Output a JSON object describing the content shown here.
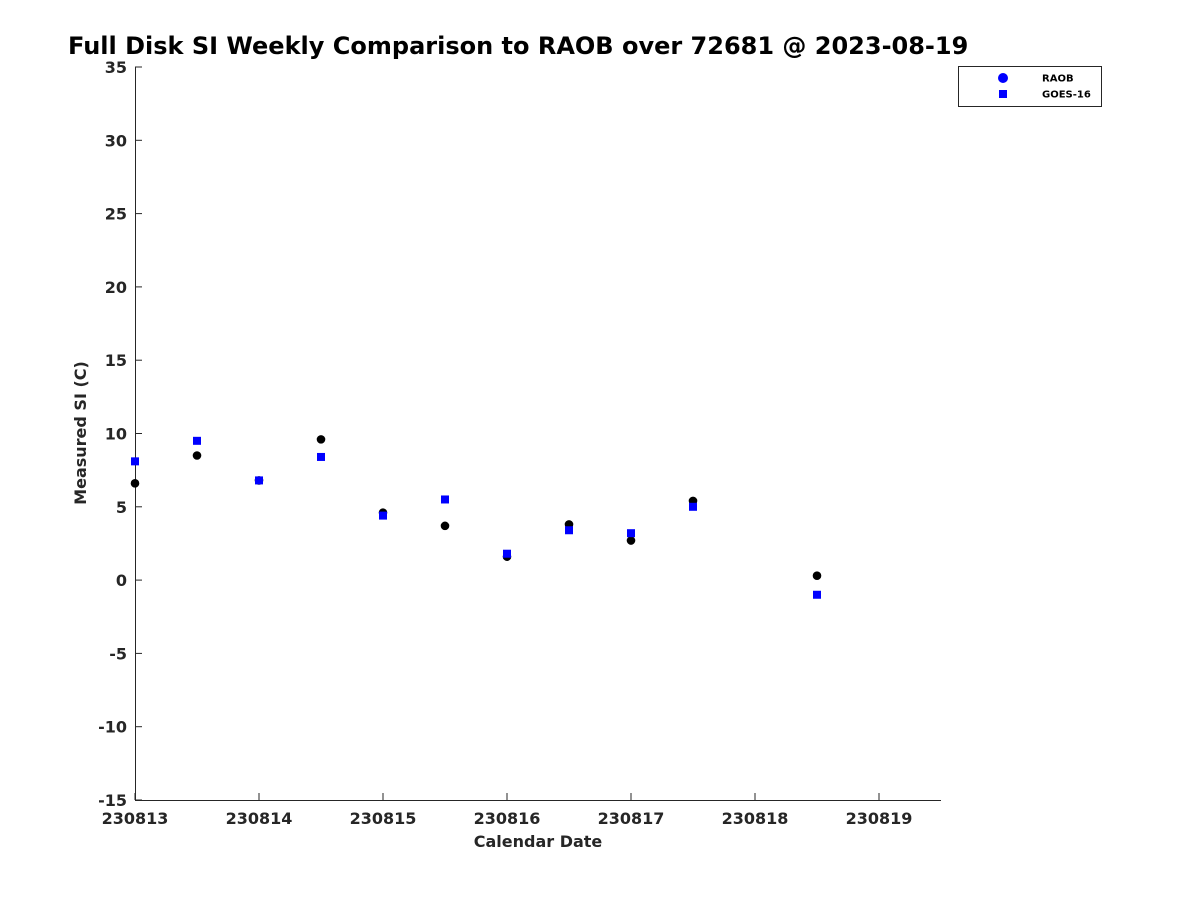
{
  "chart_data": {
    "type": "scatter",
    "title": "Full Disk SI Weekly Comparison to RAOB over 72681 @ 2023-08-19",
    "xlabel": "Calendar Date",
    "ylabel": "Measured SI (C)",
    "x_tick_labels": [
      "230813",
      "230814",
      "230815",
      "230816",
      "230817",
      "230818",
      "230819"
    ],
    "x_ticks": [
      "2023-08-13",
      "2023-08-14",
      "2023-08-15",
      "2023-08-16",
      "2023-08-17",
      "2023-08-18",
      "2023-08-19"
    ],
    "xlim": [
      "2023-08-13T00:00",
      "2023-08-19T12:00"
    ],
    "ylim": [
      -15,
      35
    ],
    "y_ticks": [
      -15,
      -10,
      -5,
      0,
      5,
      10,
      15,
      20,
      25,
      30,
      35
    ],
    "grid": false,
    "legend_position": "top-right",
    "series": [
      {
        "name": "RAOB",
        "marker": "circle",
        "color": "#000000",
        "points": [
          {
            "x": "2023-08-13T00:00",
            "y": 6.6
          },
          {
            "x": "2023-08-13T12:00",
            "y": 8.5
          },
          {
            "x": "2023-08-14T00:00",
            "y": 6.8
          },
          {
            "x": "2023-08-14T12:00",
            "y": 9.6
          },
          {
            "x": "2023-08-15T00:00",
            "y": 4.6
          },
          {
            "x": "2023-08-15T12:00",
            "y": 3.7
          },
          {
            "x": "2023-08-16T00:00",
            "y": 1.6
          },
          {
            "x": "2023-08-16T12:00",
            "y": 3.8
          },
          {
            "x": "2023-08-17T00:00",
            "y": 2.7
          },
          {
            "x": "2023-08-17T12:00",
            "y": 5.4
          },
          {
            "x": "2023-08-18T12:00",
            "y": 0.3
          }
        ]
      },
      {
        "name": "GOES-16",
        "marker": "square",
        "color": "#0000ff",
        "points": [
          {
            "x": "2023-08-13T00:00",
            "y": 8.1
          },
          {
            "x": "2023-08-13T12:00",
            "y": 9.5
          },
          {
            "x": "2023-08-14T00:00",
            "y": 6.8
          },
          {
            "x": "2023-08-14T12:00",
            "y": 8.4
          },
          {
            "x": "2023-08-15T00:00",
            "y": 4.4
          },
          {
            "x": "2023-08-15T12:00",
            "y": 5.5
          },
          {
            "x": "2023-08-16T00:00",
            "y": 1.8
          },
          {
            "x": "2023-08-16T12:00",
            "y": 3.4
          },
          {
            "x": "2023-08-17T00:00",
            "y": 3.2
          },
          {
            "x": "2023-08-17T12:00",
            "y": 5.0
          },
          {
            "x": "2023-08-18T12:00",
            "y": -1.0
          }
        ]
      }
    ]
  },
  "legend_marker_color": "#0000ff"
}
